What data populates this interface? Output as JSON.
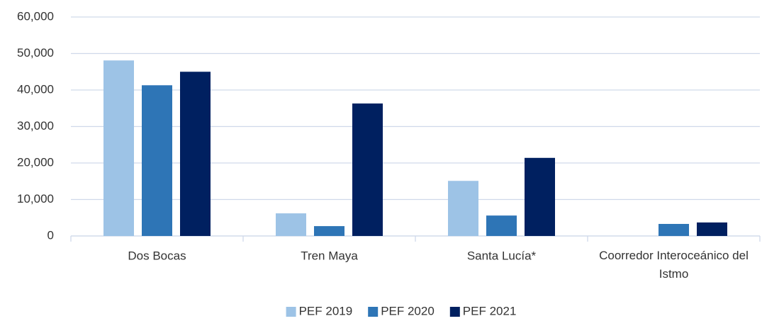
{
  "chart_data": {
    "type": "bar",
    "categories": [
      "Dos Bocas",
      "Tren Maya",
      "Santa Lucía*",
      "Coorredor Interoceánico del Istmo"
    ],
    "series": [
      {
        "name": "PEF 2019",
        "color": "#9dc3e6",
        "values": [
          48100,
          6200,
          15100,
          0
        ]
      },
      {
        "name": "PEF 2020",
        "color": "#2e75b6",
        "values": [
          41300,
          2700,
          5600,
          3300
        ]
      },
      {
        "name": "PEF 2021",
        "color": "#002060",
        "values": [
          45000,
          36300,
          21400,
          3700
        ]
      }
    ],
    "ylim": [
      0,
      60000
    ],
    "yticks": [
      0,
      {
        "value": 10000,
        "label": "10,000"
      },
      {
        "value": 20000,
        "label": "20,000"
      },
      {
        "value": 30000,
        "label": "30,000"
      },
      {
        "value": 40000,
        "label": "40,000"
      },
      {
        "value": 50000,
        "label": "50,000"
      },
      {
        "value": 60000,
        "label": "60,000"
      }
    ],
    "grid": true
  }
}
